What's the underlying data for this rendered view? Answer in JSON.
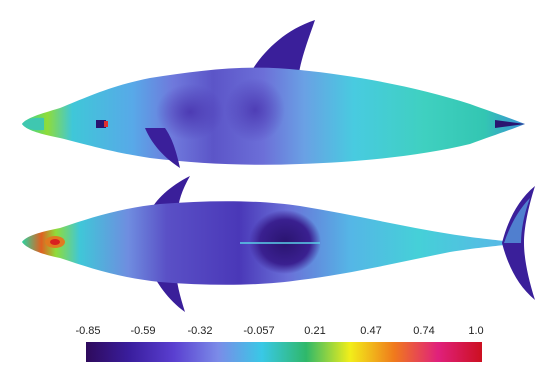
{
  "colorbar": {
    "ticks": [
      "-0.85",
      "-0.59",
      "-0.32",
      "-0.057",
      "0.21",
      "0.47",
      "0.74",
      "1.0"
    ],
    "colors": [
      "#2e0a5c",
      "#3a1e9e",
      "#5a3fd0",
      "#7b8be8",
      "#39c8e6",
      "#2fb86a",
      "#f2ee1a",
      "#f07a1c",
      "#e0207c",
      "#cc1020"
    ]
  }
}
